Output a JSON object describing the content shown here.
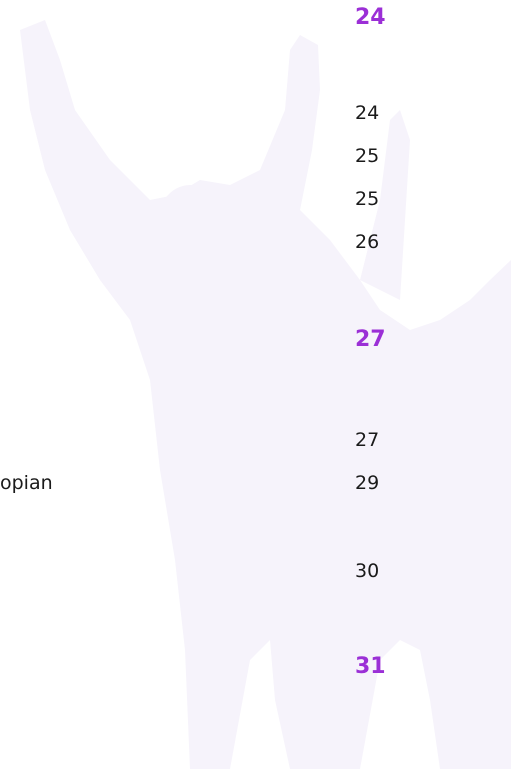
{
  "toc": {
    "sections": [
      {
        "page": "24",
        "entries": [
          {
            "page": "24"
          },
          {
            "page": "25"
          },
          {
            "page": "25"
          },
          {
            "page": "26"
          }
        ]
      },
      {
        "page": "27",
        "entries": [
          {
            "page": "27"
          },
          {
            "label": "opian",
            "page": "29"
          },
          {
            "page": "30"
          }
        ]
      },
      {
        "page": "31",
        "entries": []
      }
    ]
  }
}
